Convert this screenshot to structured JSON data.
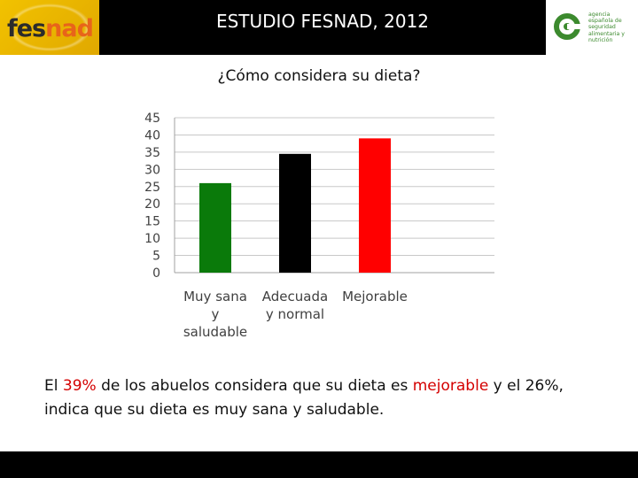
{
  "header": {
    "logo_left": {
      "part1": "fes",
      "part2": "nad"
    },
    "title": "ESTUDIO FESNAD, 2012",
    "logo_right": {
      "icon": "aesan-circle-icon",
      "lines": [
        "agencia",
        "española de",
        "seguridad",
        "alimentaria y",
        "nutrición"
      ]
    }
  },
  "question": "¿Cómo considera su dieta?",
  "chart_data": {
    "type": "bar",
    "categories": [
      [
        "Muy sana",
        "y",
        "saludable"
      ],
      [
        "Adecuada",
        "y normal"
      ],
      [
        "Mejorable"
      ]
    ],
    "values": [
      26,
      34.5,
      39
    ],
    "colors": [
      "#0a7a0a",
      "#000000",
      "#ff0000"
    ],
    "ylim": [
      0,
      45
    ],
    "yticks": [
      "0",
      "5",
      "10",
      "15",
      "20",
      "25",
      "30",
      "35",
      "40",
      "45"
    ],
    "grid": true,
    "title": "",
    "xlabel": "",
    "ylabel": ""
  },
  "caption": {
    "t1": "El ",
    "h1": "39%",
    "t2": " de los abuelos considera que su dieta es ",
    "h2": "mejorable",
    "t3": " y el 26%, indica que su dieta es muy sana y saludable."
  },
  "colors": {
    "accent": "#d40000",
    "brand_yellow": "#f2c200",
    "brand_orange": "#e8641a",
    "aesan_green": "#3c8a2e"
  }
}
